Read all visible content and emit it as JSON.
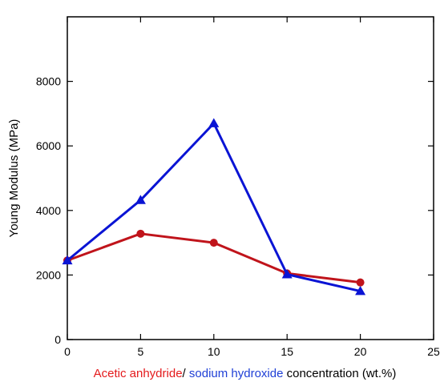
{
  "chart_data": {
    "type": "line",
    "title": "",
    "ylabel": "Young Modulus (MPa)",
    "xlabel_parts": [
      {
        "text": "Acetic anhydride",
        "color": "#e41a1c"
      },
      {
        "text": "/ ",
        "color": "#000000"
      },
      {
        "text": "sodium hydroxide",
        "color": "#1f3fd6"
      },
      {
        "text": " concentration (wt.%)",
        "color": "#000000"
      }
    ],
    "xlim": [
      0,
      25
    ],
    "ylim": [
      0,
      10000
    ],
    "xticks": [
      0,
      5,
      10,
      15,
      20,
      25
    ],
    "yticks": [
      0,
      2000,
      4000,
      6000,
      8000
    ],
    "grid": false,
    "series": [
      {
        "color": "#c0141b",
        "marker": "circle",
        "x": [
          0,
          5,
          10,
          15,
          20
        ],
        "y": [
          2450,
          3280,
          3000,
          2050,
          1770
        ]
      },
      {
        "color": "#0a14d4",
        "marker": "triangle",
        "x": [
          0,
          5,
          10,
          15,
          20
        ],
        "y": [
          2450,
          4320,
          6700,
          2020,
          1500
        ]
      }
    ]
  }
}
